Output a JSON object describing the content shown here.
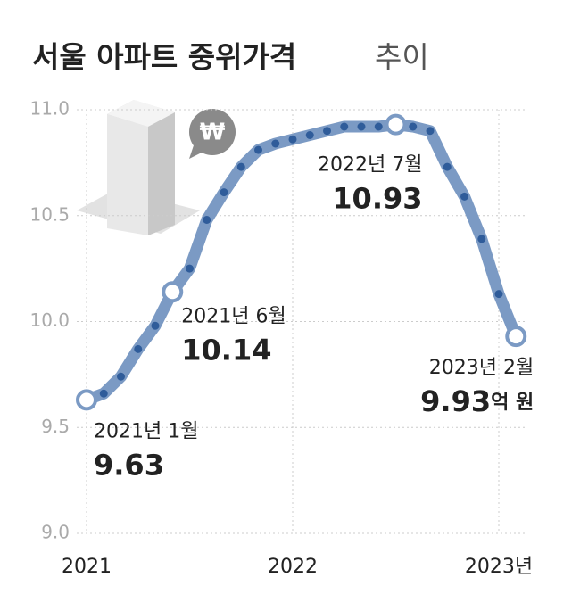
{
  "chart_data": {
    "type": "line",
    "title": "서울 아파트 중위가격",
    "title_suffix": "추이",
    "unit": "억 원",
    "categories": [
      "2021",
      null,
      null,
      null,
      null,
      null,
      null,
      null,
      null,
      null,
      null,
      null,
      "2022",
      null,
      null,
      null,
      null,
      null,
      null,
      null,
      null,
      null,
      null,
      null,
      "2023년",
      null
    ],
    "values": [
      9.63,
      9.66,
      9.74,
      9.87,
      9.98,
      10.14,
      10.25,
      10.48,
      10.61,
      10.73,
      10.81,
      10.84,
      10.86,
      10.88,
      10.9,
      10.92,
      10.92,
      10.92,
      10.93,
      10.92,
      10.9,
      10.73,
      10.59,
      10.39,
      10.13,
      9.93
    ],
    "color": "#7b9ac4",
    "dot_color": "#2f5c9a",
    "ylim": [
      9,
      11
    ],
    "yticks": [
      {
        "value": 9,
        "label": "9.0"
      },
      9.5,
      {
        "value": 10,
        "label": "10.0"
      },
      10.5,
      {
        "value": 11,
        "label": "11.0"
      }
    ],
    "grid": true,
    "annotations": [
      {
        "text": "2021년 1월",
        "value": 9.63
      },
      {
        "text": "2021년 6월",
        "value": 10.14
      },
      {
        "text": "2022년 7월",
        "value": 10.93
      },
      {
        "text": "2023년 2월",
        "value": 9.93
      }
    ]
  }
}
